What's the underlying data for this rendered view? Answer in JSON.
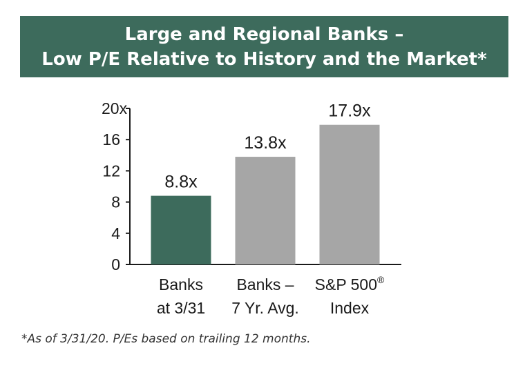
{
  "title": {
    "line1": "Large and Regional Banks –",
    "line2": "Low P/E Relative to History and the Market*"
  },
  "footnote": "*As of 3/31/20. P/Es based on trailing 12 months.",
  "colors": {
    "title_band": "#3d6b5c",
    "highlight_bar": "#3d6b5c",
    "comparison_bar": "#a6a6a6",
    "axis": "#1a1a1a"
  },
  "chart_data": {
    "type": "bar",
    "categories": [
      [
        "Banks",
        "at 3/31"
      ],
      [
        "Banks –",
        "7 Yr. Avg."
      ],
      [
        "S&P 500®",
        "Index"
      ]
    ],
    "values": [
      8.8,
      13.8,
      17.9
    ],
    "data_labels": [
      "8.8x",
      "13.8x",
      "17.9x"
    ],
    "bar_colors": [
      "#3d6b5c",
      "#a6a6a6",
      "#a6a6a6"
    ],
    "ylim": [
      0,
      20
    ],
    "yticks": [
      {
        "value": 0,
        "label": "0"
      },
      {
        "value": 4,
        "label": "4"
      },
      {
        "value": 8,
        "label": "8"
      },
      {
        "value": 12,
        "label": "12"
      },
      {
        "value": 16,
        "label": "16"
      },
      {
        "value": 20,
        "label": "20x"
      }
    ],
    "grid": false,
    "legend": "none"
  }
}
